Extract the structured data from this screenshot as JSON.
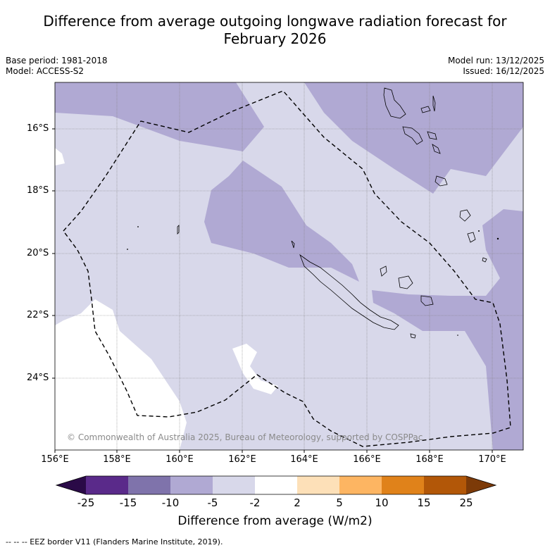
{
  "header": {
    "title_line1": "Difference from average outgoing longwave radiation forecast for",
    "title_line2": "February 2026",
    "base_period": "Base period: 1981-2018",
    "model": "Model: ACCESS-S2",
    "model_run": "Model run: 13/12/2025",
    "issued": "Issued: 16/12/2025"
  },
  "map": {
    "lat_labels": [
      "16°S",
      "18°S",
      "20°S",
      "22°S",
      "24°S"
    ],
    "lon_labels": [
      "156°E",
      "158°E",
      "160°E",
      "162°E",
      "164°E",
      "166°E",
      "168°E",
      "170°E"
    ],
    "copyright": "© Commonwealth of Australia 2025, Bureau of Meteorology, supported by COSPPac",
    "colors": {
      "band_m5_m2": "#d8d8ea",
      "band_m10_m5": "#b0a9d3",
      "neutral": "#ffffff"
    }
  },
  "colorbar": {
    "ticks": [
      "-25",
      "-15",
      "-10",
      "-5",
      "-2",
      "2",
      "5",
      "10",
      "15",
      "25"
    ],
    "colors": [
      "#2a0a47",
      "#5a2a8a",
      "#7f73ab",
      "#b0a9d3",
      "#d8d8ea",
      "#ffffff",
      "#fde0b8",
      "#fdb562",
      "#e0821a",
      "#b25708",
      "#7c3a08"
    ],
    "title": "Difference from average (W/m2)"
  },
  "footer": {
    "legend": "--  --  -- EEZ border V11 (Flanders Marine Institute, 2019)."
  }
}
